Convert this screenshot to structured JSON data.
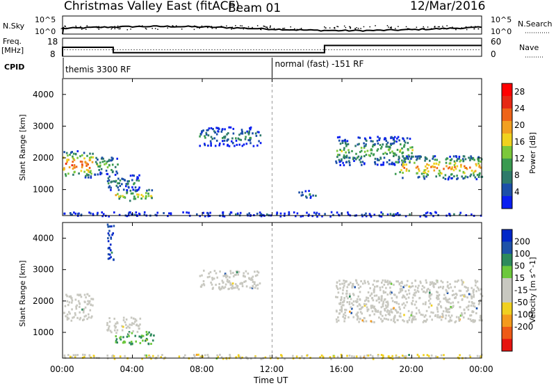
{
  "header": {
    "title": "Christmas Valley East (fitACF)",
    "beam": "Beam 01",
    "date": "12/Mar/2016"
  },
  "noise_panel": {
    "left_label": "N.Sky",
    "right_label": "N.Search",
    "tick_top": "10^5",
    "tick_bottom": "10^0",
    "right_tick_top": "10^5",
    "right_tick_bottom": "10^0"
  },
  "freq_panel": {
    "left_label_1": "Freq.",
    "left_label_2": "[MHz]",
    "left_ticks": [
      "18",
      "8"
    ],
    "right_ticks": [
      "60",
      "0"
    ],
    "right_label": "Nave",
    "freq_steps": [
      {
        "start": 0.0,
        "end": 2.9,
        "level": 13
      },
      {
        "start": 2.9,
        "end": 15.0,
        "level": 10
      },
      {
        "start": 15.0,
        "end": 24.0,
        "level": 14
      }
    ],
    "nave_level": 22
  },
  "cpid": {
    "label": "CPID",
    "modes": [
      {
        "start": 0.0,
        "text": "themis 3300 RF"
      },
      {
        "start": 12.0,
        "text": "normal (fast) -151 RF"
      }
    ]
  },
  "axes": {
    "x_ticks": [
      "00:00",
      "04:00",
      "08:00",
      "12:00",
      "16:00",
      "20:00",
      "00:00"
    ],
    "x_label": "Time UT",
    "y_label": "Slant Range [km]",
    "y_ticks": [
      "1000",
      "2000",
      "3000",
      "4000"
    ],
    "y_range": [
      180,
      4500
    ],
    "x_range": [
      0,
      24
    ]
  },
  "power_scale": {
    "label": "Power [dB]",
    "ticks": [
      "4",
      "8",
      "12",
      "16",
      "20",
      "24",
      "28"
    ],
    "colors": [
      "#0a1ef0",
      "#1c4fa8",
      "#2e7a6a",
      "#3a9a50",
      "#7bc83a",
      "#f0d21e",
      "#f2a020",
      "#ee6418",
      "#e62814",
      "#ff0000"
    ]
  },
  "velocity_scale": {
    "label": "Velocity [m s^-1]",
    "ticks": [
      "200",
      "100",
      "50",
      "15",
      "-15",
      "-50",
      "-100",
      "-200"
    ],
    "colors": [
      "#0026c8",
      "#1e52a8",
      "#2d8a5c",
      "#6cc83c",
      "#c8c8c0",
      "#c8c8c0",
      "#f0d020",
      "#f49a1c",
      "#ee5a16",
      "#e61410"
    ]
  },
  "chart_data": {
    "type": "heatmap",
    "title": "Christmas Valley East (fitACF)",
    "xlabel": "Time UT",
    "ylabel": "Slant Range [km]",
    "xlim": [
      0,
      24
    ],
    "ylim": [
      180,
      4500
    ],
    "power_regions": [
      {
        "t0": 0.0,
        "t1": 1.7,
        "r0": 1400,
        "r1": 2250,
        "peak": 28
      },
      {
        "t0": 1.8,
        "t1": 3.2,
        "r0": 1500,
        "r1": 2100,
        "peak": 16
      },
      {
        "t0": 2.5,
        "t1": 4.4,
        "r0": 1000,
        "r1": 1500,
        "peak": 12
      },
      {
        "t0": 3.0,
        "t1": 5.2,
        "r0": 650,
        "r1": 1050,
        "peak": 20
      },
      {
        "t0": 7.8,
        "t1": 11.3,
        "r0": 2400,
        "r1": 3000,
        "peak": 12
      },
      {
        "t0": 13.5,
        "t1": 14.5,
        "r0": 750,
        "r1": 1000,
        "peak": 12
      },
      {
        "t0": 15.6,
        "t1": 20.0,
        "r0": 1800,
        "r1": 2700,
        "peak": 16
      },
      {
        "t0": 19.0,
        "t1": 24.0,
        "r0": 1350,
        "r1": 2100,
        "peak": 24
      },
      {
        "t0": 0.0,
        "t1": 24.0,
        "r0": 180,
        "r1": 320,
        "peak": 8
      }
    ],
    "velocity_regions": [
      {
        "t0": 0.0,
        "t1": 1.7,
        "r0": 1400,
        "r1": 2250,
        "v": 0
      },
      {
        "t0": 2.5,
        "t1": 2.9,
        "r0": 3300,
        "r1": 4500,
        "v": 200
      },
      {
        "t0": 3.0,
        "t1": 5.2,
        "r0": 650,
        "r1": 1050,
        "v": 50
      },
      {
        "t0": 2.5,
        "t1": 4.4,
        "r0": 1000,
        "r1": 1500,
        "v": 0
      },
      {
        "t0": 7.8,
        "t1": 11.3,
        "r0": 2400,
        "r1": 3000,
        "v": 0
      },
      {
        "t0": 15.6,
        "t1": 24.0,
        "r0": 1350,
        "r1": 2700,
        "v": 0
      },
      {
        "t0": 0.0,
        "t1": 24.0,
        "r0": 180,
        "r1": 320,
        "v": -50
      }
    ]
  }
}
